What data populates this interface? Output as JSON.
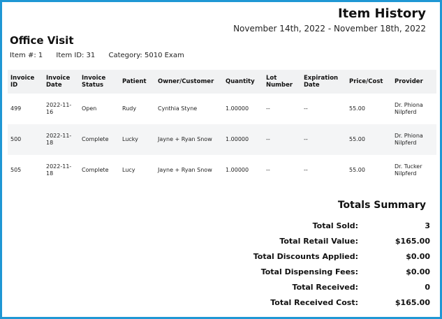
{
  "header": {
    "title": "Item History",
    "date_range": "November 14th, 2022 - November 18th, 2022"
  },
  "item": {
    "section_title": "Office Visit",
    "item_number": "Item #: 1",
    "item_id": "Item ID: 31",
    "category": "Category: 5010 Exam"
  },
  "table": {
    "headers": [
      "Invoice ID",
      "Invoice Date",
      "Invoice Status",
      "Patient",
      "Owner/Customer",
      "Quantity",
      "Lot Number",
      "Expiration Date",
      "Price/Cost",
      "Provider"
    ],
    "rows": [
      [
        "499",
        "2022-11-16",
        "Open",
        "Rudy",
        "Cynthia Styne",
        "1.00000",
        "--",
        "--",
        "55.00",
        "Dr. Phiona Nilpferd"
      ],
      [
        "500",
        "2022-11-18",
        "Complete",
        "Lucky",
        "Jayne + Ryan Snow",
        "1.00000",
        "--",
        "--",
        "55.00",
        "Dr. Phiona Nilpferd"
      ],
      [
        "505",
        "2022-11-18",
        "Complete",
        "Lucy",
        "Jayne + Ryan Snow",
        "1.00000",
        "--",
        "--",
        "55.00",
        "Dr. Tucker Nilpferd"
      ]
    ]
  },
  "totals": {
    "title": "Totals Summary",
    "rows": [
      {
        "label": "Total Sold:",
        "value": "3"
      },
      {
        "label": "Total Retail Value:",
        "value": "$165.00"
      },
      {
        "label": "Total Discounts Applied:",
        "value": "$0.00"
      },
      {
        "label": "Total Dispensing Fees:",
        "value": "$0.00"
      },
      {
        "label": "Total Received:",
        "value": "0"
      },
      {
        "label": "Total Received Cost:",
        "value": "$165.00"
      }
    ]
  },
  "colors": {
    "frame_border": "#1f97d4",
    "header_bg": "#f1f2f3",
    "alt_row_bg": "#f4f5f6"
  }
}
